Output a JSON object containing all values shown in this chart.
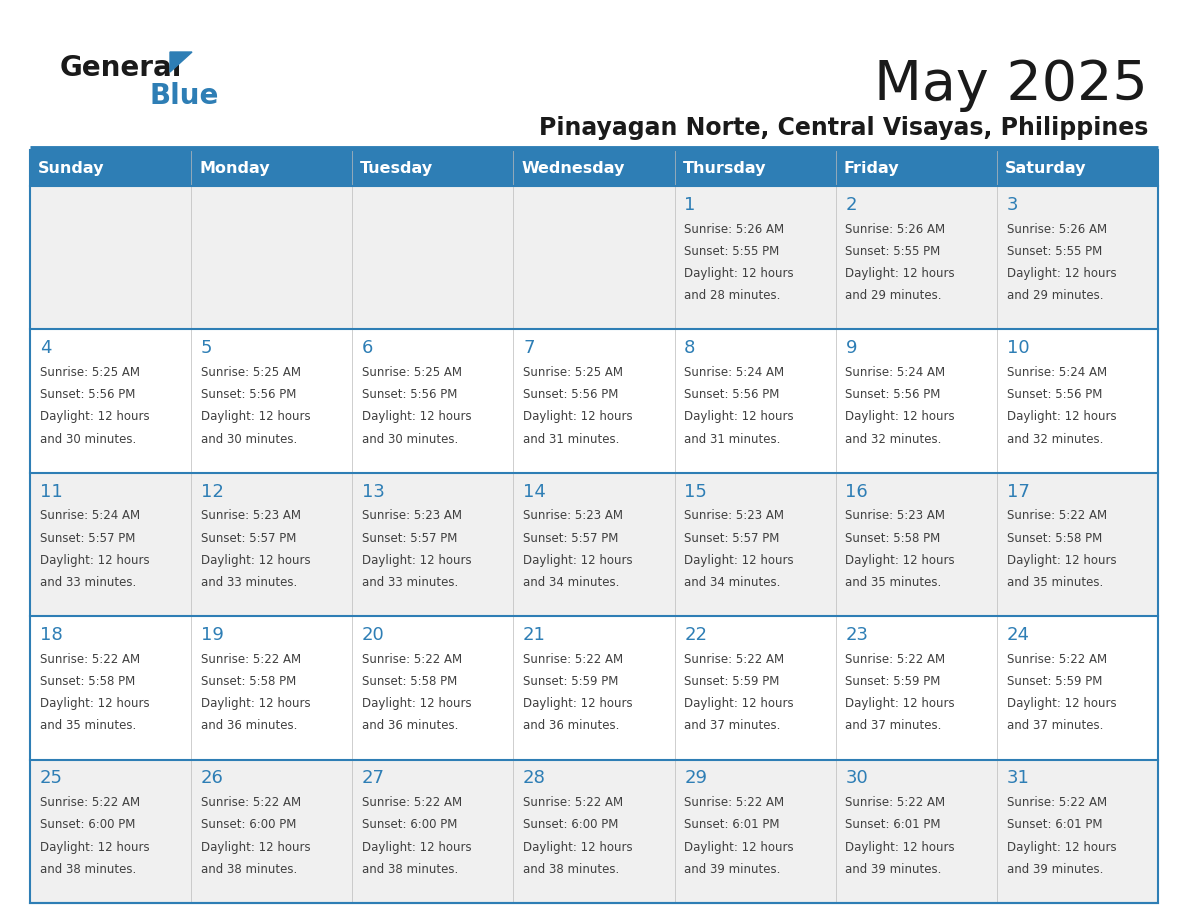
{
  "title": "May 2025",
  "subtitle": "Pinayagan Norte, Central Visayas, Philippines",
  "days_of_week": [
    "Sunday",
    "Monday",
    "Tuesday",
    "Wednesday",
    "Thursday",
    "Friday",
    "Saturday"
  ],
  "header_bg_color": "#2E7EB5",
  "header_text_color": "#FFFFFF",
  "row_bg_gray": "#F0F0F0",
  "row_bg_white": "#FFFFFF",
  "day_number_color": "#2E7EB5",
  "text_color": "#404040",
  "border_color": "#2E7EB5",
  "separator_color": "#2E7EB5",
  "calendar_data": [
    [
      {
        "day": null,
        "sunrise": null,
        "sunset": null,
        "daylight": null
      },
      {
        "day": null,
        "sunrise": null,
        "sunset": null,
        "daylight": null
      },
      {
        "day": null,
        "sunrise": null,
        "sunset": null,
        "daylight": null
      },
      {
        "day": null,
        "sunrise": null,
        "sunset": null,
        "daylight": null
      },
      {
        "day": 1,
        "sunrise": "5:26 AM",
        "sunset": "5:55 PM",
        "daylight": "12 hours and 28 minutes."
      },
      {
        "day": 2,
        "sunrise": "5:26 AM",
        "sunset": "5:55 PM",
        "daylight": "12 hours and 29 minutes."
      },
      {
        "day": 3,
        "sunrise": "5:26 AM",
        "sunset": "5:55 PM",
        "daylight": "12 hours and 29 minutes."
      }
    ],
    [
      {
        "day": 4,
        "sunrise": "5:25 AM",
        "sunset": "5:56 PM",
        "daylight": "12 hours and 30 minutes."
      },
      {
        "day": 5,
        "sunrise": "5:25 AM",
        "sunset": "5:56 PM",
        "daylight": "12 hours and 30 minutes."
      },
      {
        "day": 6,
        "sunrise": "5:25 AM",
        "sunset": "5:56 PM",
        "daylight": "12 hours and 30 minutes."
      },
      {
        "day": 7,
        "sunrise": "5:25 AM",
        "sunset": "5:56 PM",
        "daylight": "12 hours and 31 minutes."
      },
      {
        "day": 8,
        "sunrise": "5:24 AM",
        "sunset": "5:56 PM",
        "daylight": "12 hours and 31 minutes."
      },
      {
        "day": 9,
        "sunrise": "5:24 AM",
        "sunset": "5:56 PM",
        "daylight": "12 hours and 32 minutes."
      },
      {
        "day": 10,
        "sunrise": "5:24 AM",
        "sunset": "5:56 PM",
        "daylight": "12 hours and 32 minutes."
      }
    ],
    [
      {
        "day": 11,
        "sunrise": "5:24 AM",
        "sunset": "5:57 PM",
        "daylight": "12 hours and 33 minutes."
      },
      {
        "day": 12,
        "sunrise": "5:23 AM",
        "sunset": "5:57 PM",
        "daylight": "12 hours and 33 minutes."
      },
      {
        "day": 13,
        "sunrise": "5:23 AM",
        "sunset": "5:57 PM",
        "daylight": "12 hours and 33 minutes."
      },
      {
        "day": 14,
        "sunrise": "5:23 AM",
        "sunset": "5:57 PM",
        "daylight": "12 hours and 34 minutes."
      },
      {
        "day": 15,
        "sunrise": "5:23 AM",
        "sunset": "5:57 PM",
        "daylight": "12 hours and 34 minutes."
      },
      {
        "day": 16,
        "sunrise": "5:23 AM",
        "sunset": "5:58 PM",
        "daylight": "12 hours and 35 minutes."
      },
      {
        "day": 17,
        "sunrise": "5:22 AM",
        "sunset": "5:58 PM",
        "daylight": "12 hours and 35 minutes."
      }
    ],
    [
      {
        "day": 18,
        "sunrise": "5:22 AM",
        "sunset": "5:58 PM",
        "daylight": "12 hours and 35 minutes."
      },
      {
        "day": 19,
        "sunrise": "5:22 AM",
        "sunset": "5:58 PM",
        "daylight": "12 hours and 36 minutes."
      },
      {
        "day": 20,
        "sunrise": "5:22 AM",
        "sunset": "5:58 PM",
        "daylight": "12 hours and 36 minutes."
      },
      {
        "day": 21,
        "sunrise": "5:22 AM",
        "sunset": "5:59 PM",
        "daylight": "12 hours and 36 minutes."
      },
      {
        "day": 22,
        "sunrise": "5:22 AM",
        "sunset": "5:59 PM",
        "daylight": "12 hours and 37 minutes."
      },
      {
        "day": 23,
        "sunrise": "5:22 AM",
        "sunset": "5:59 PM",
        "daylight": "12 hours and 37 minutes."
      },
      {
        "day": 24,
        "sunrise": "5:22 AM",
        "sunset": "5:59 PM",
        "daylight": "12 hours and 37 minutes."
      }
    ],
    [
      {
        "day": 25,
        "sunrise": "5:22 AM",
        "sunset": "6:00 PM",
        "daylight": "12 hours and 38 minutes."
      },
      {
        "day": 26,
        "sunrise": "5:22 AM",
        "sunset": "6:00 PM",
        "daylight": "12 hours and 38 minutes."
      },
      {
        "day": 27,
        "sunrise": "5:22 AM",
        "sunset": "6:00 PM",
        "daylight": "12 hours and 38 minutes."
      },
      {
        "day": 28,
        "sunrise": "5:22 AM",
        "sunset": "6:00 PM",
        "daylight": "12 hours and 38 minutes."
      },
      {
        "day": 29,
        "sunrise": "5:22 AM",
        "sunset": "6:01 PM",
        "daylight": "12 hours and 39 minutes."
      },
      {
        "day": 30,
        "sunrise": "5:22 AM",
        "sunset": "6:01 PM",
        "daylight": "12 hours and 39 minutes."
      },
      {
        "day": 31,
        "sunrise": "5:22 AM",
        "sunset": "6:01 PM",
        "daylight": "12 hours and 39 minutes."
      }
    ]
  ]
}
